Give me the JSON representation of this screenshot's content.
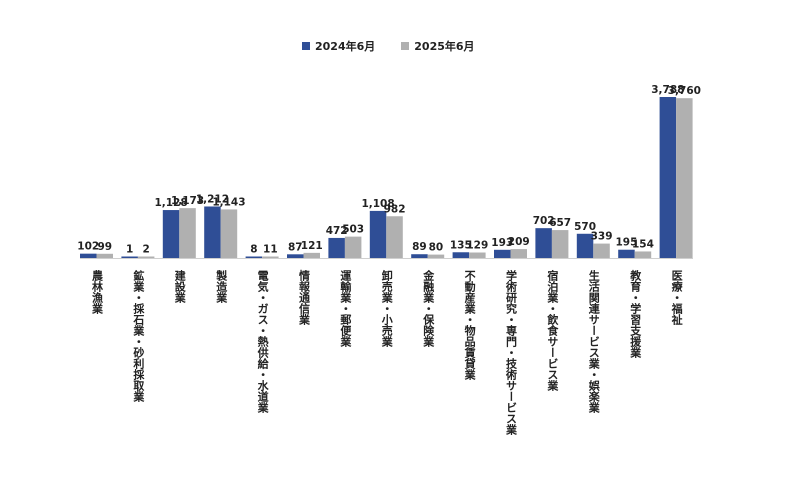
{
  "colors": {
    "series_2024": "#2f4e96",
    "series_2025": "#b0b0b0"
  },
  "chart_data": {
    "type": "bar",
    "ylim": [
      0,
      4200
    ],
    "grid": false,
    "legend_position": "top-center",
    "categories": [
      "農林漁業",
      "鉱業・採石業・砂利採取業",
      "建設業",
      "製造業",
      "電気・ガス・熱供給・水道業",
      "情報通信業",
      "運輸業・郵便業",
      "卸売業・小売業",
      "金融業・保険業",
      "不動産業・物品賃貸業",
      "学術研究・専門・技術サービス業",
      "宿泊業・飲食サービス業",
      "生活関連サービス業・娯楽業",
      "教育・学習支援業",
      "医療・福祉"
    ],
    "series": [
      {
        "name": "2024年6月",
        "values": [
          102,
          1,
          1128,
          1212,
          8,
          87,
          472,
          1108,
          89,
          135,
          193,
          702,
          570,
          195,
          3788
        ],
        "labels": [
          "102",
          "1",
          "1,128",
          "1,212",
          "8",
          "87",
          "472",
          "1,108",
          "89",
          "135",
          "193",
          "702",
          "570",
          "195",
          "3,788"
        ]
      },
      {
        "name": "2025年6月",
        "values": [
          99,
          2,
          1173,
          1143,
          11,
          121,
          503,
          982,
          80,
          129,
          209,
          657,
          339,
          154,
          3760
        ],
        "labels": [
          "99",
          "2",
          "1,173",
          "1,143",
          "11",
          "121",
          "503",
          "982",
          "80",
          "129",
          "209",
          "657",
          "339",
          "154",
          "3,760"
        ]
      }
    ]
  }
}
